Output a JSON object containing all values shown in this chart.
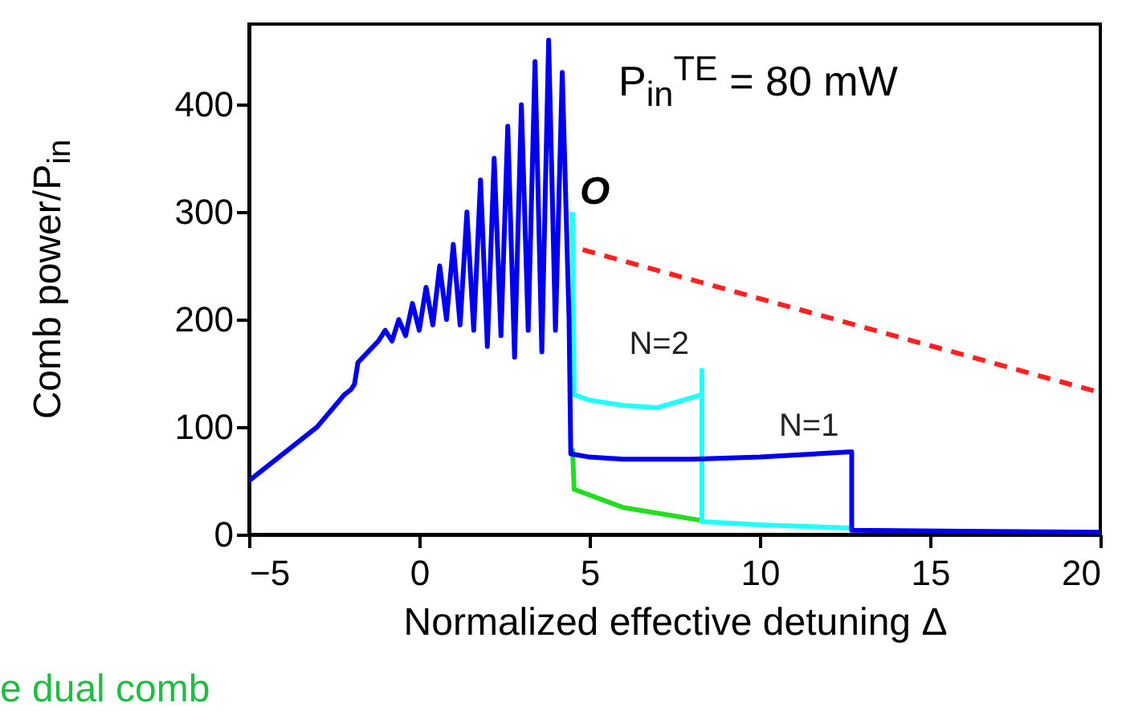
{
  "chart_data": {
    "type": "line",
    "xlabel": "Normalized effective detuning Δ",
    "ylabel": "Comb power/P$_{in}$",
    "annotations": [
      "P$_{in}$$^{TE}$ = 80 mW",
      "O",
      "e dual comb"
    ],
    "xlim": [
      -5,
      20
    ],
    "xticks": [
      {
        "value": -5,
        "label": "−5"
      },
      0,
      5,
      10,
      15,
      20
    ],
    "ylim": [
      0,
      475
    ],
    "yticks": [
      0,
      100,
      200,
      300,
      400
    ],
    "grid": false,
    "series": [
      {
        "color": "#22dd22",
        "x": [
          4.5,
          4.55,
          6,
          8.3
        ],
        "values": [
          80,
          42,
          25,
          13
        ]
      },
      {
        "name": "N=2",
        "color": "#22ffff",
        "x": [
          4.5,
          4.55,
          5,
          6,
          7,
          8.3,
          8.3,
          8.3,
          10,
          12.7
        ],
        "values": [
          300,
          130,
          125,
          120,
          118,
          130,
          153,
          12,
          9,
          6
        ]
      },
      {
        "name": "N=1",
        "color": "#0000ee",
        "x": [
          -5,
          -4,
          -3,
          -2.2,
          -2,
          -1.9,
          -1.8,
          -1.5,
          -1.2,
          -1,
          -0.8,
          -0.6,
          -0.4,
          -0.2,
          0,
          0.2,
          0.4,
          0.6,
          0.8,
          1,
          1.2,
          1.4,
          1.6,
          1.8,
          2,
          2.2,
          2.4,
          2.6,
          2.8,
          3,
          3.2,
          3.4,
          3.6,
          3.8,
          4,
          4.2,
          4.4,
          4.45,
          5,
          6,
          8,
          10,
          12.7,
          12.7,
          16,
          20
        ],
        "values": [
          50,
          75,
          100,
          130,
          135,
          140,
          160,
          170,
          180,
          190,
          180,
          200,
          185,
          215,
          190,
          230,
          195,
          250,
          200,
          270,
          195,
          300,
          190,
          330,
          175,
          350,
          185,
          380,
          165,
          400,
          190,
          440,
          170,
          460,
          190,
          430,
          200,
          75,
          72,
          70,
          70,
          72,
          77,
          4,
          3,
          2
        ]
      },
      {
        "color": "#ff2020",
        "line_style": "dashed",
        "x": [
          4.8,
          20
        ],
        "values": [
          265,
          132
        ]
      }
    ]
  }
}
